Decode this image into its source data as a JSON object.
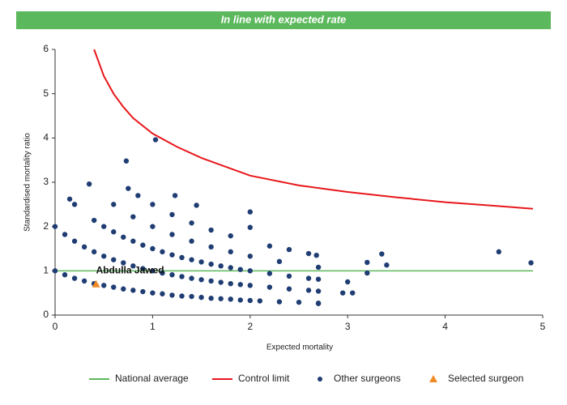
{
  "header": "In line with expected rate",
  "chart_data": {
    "type": "scatter",
    "xlabel": "Expected mortality",
    "ylabel": "Standardised mortality ratio",
    "xlim": [
      0,
      5
    ],
    "xticks": [
      0,
      1,
      2,
      3,
      4,
      5
    ],
    "ylim": [
      0,
      6
    ],
    "yticks": [
      0,
      1,
      2,
      3,
      4,
      5,
      6
    ],
    "grid": false,
    "legend": "bottom",
    "annotation": {
      "text": "Abdulla Jawed",
      "x": 0.42,
      "y": 1.0
    },
    "series": [
      {
        "name": "National average",
        "type": "line",
        "color": "#5cb85c",
        "x": [
          0,
          4.9
        ],
        "values": [
          1,
          1
        ]
      },
      {
        "name": "Control limit",
        "type": "line",
        "color": "#e8171b",
        "x": [
          0.4,
          0.5,
          0.6,
          0.7,
          0.8,
          1.0,
          1.25,
          1.5,
          2.0,
          2.5,
          3.0,
          3.5,
          4.0,
          4.5,
          4.9
        ],
        "values": [
          6.0,
          5.4,
          5.0,
          4.7,
          4.45,
          4.1,
          3.8,
          3.55,
          3.15,
          2.93,
          2.78,
          2.66,
          2.55,
          2.47,
          2.4
        ]
      },
      {
        "name": "Other surgeons",
        "type": "scatter",
        "color": "#1f3d73",
        "x": [
          0,
          0.1,
          0.2,
          0.3,
          0.4,
          0.5,
          0.6,
          0.7,
          0.8,
          0.9,
          1.0,
          1.1,
          1.2,
          1.3,
          1.4,
          1.5,
          1.6,
          1.7,
          1.8,
          1.9,
          2.0,
          2.1,
          2.3,
          2.5,
          2.7,
          0,
          0.1,
          0.2,
          0.3,
          0.4,
          0.5,
          0.6,
          0.7,
          0.8,
          0.9,
          1.0,
          1.1,
          1.2,
          1.3,
          1.4,
          1.5,
          1.6,
          1.7,
          1.8,
          1.9,
          2.0,
          2.2,
          2.4,
          2.6,
          2.7,
          2.95,
          3.05,
          0.4,
          0.5,
          0.6,
          0.7,
          0.8,
          0.9,
          1.0,
          1.1,
          1.2,
          1.3,
          1.4,
          1.5,
          1.6,
          1.7,
          1.8,
          1.9,
          2.0,
          2.2,
          2.4,
          2.6,
          2.7,
          3.0,
          0.35,
          0.6,
          0.8,
          1.0,
          1.2,
          1.4,
          1.6,
          1.8,
          2.0,
          2.3,
          2.7,
          3.2,
          0.75,
          0.85,
          1.0,
          1.2,
          1.4,
          1.6,
          1.8,
          2.2,
          2.6,
          3.2,
          0.73,
          1.03,
          1.23,
          2.0,
          1.45,
          3.35,
          4.55,
          4.88,
          2.68,
          3.4,
          0.15,
          0.2,
          2.7,
          2.0,
          2.4
        ],
        "values": [
          1,
          0.91,
          0.83,
          0.77,
          0.71,
          0.67,
          0.63,
          0.59,
          0.56,
          0.53,
          0.5,
          0.48,
          0.45,
          0.43,
          0.42,
          0.4,
          0.38,
          0.37,
          0.36,
          0.34,
          0.33,
          0.32,
          0.3,
          0.29,
          0.27,
          2,
          1.82,
          1.67,
          1.54,
          1.43,
          1.33,
          1.25,
          1.18,
          1.11,
          1.05,
          1,
          0.95,
          0.91,
          0.87,
          0.83,
          0.8,
          0.77,
          0.74,
          0.71,
          0.69,
          0.67,
          0.63,
          0.59,
          0.56,
          0.54,
          0.5,
          0.5,
          2.14,
          2.0,
          1.88,
          1.76,
          1.67,
          1.58,
          1.5,
          1.43,
          1.36,
          1.3,
          1.25,
          1.2,
          1.15,
          1.11,
          1.07,
          1.03,
          1.0,
          0.94,
          0.88,
          0.83,
          0.81,
          0.75,
          2.96,
          2.5,
          2.22,
          2.0,
          1.82,
          1.67,
          1.54,
          1.43,
          1.33,
          1.21,
          1.08,
          0.95,
          2.86,
          2.7,
          2.5,
          2.27,
          2.08,
          1.92,
          1.79,
          1.56,
          1.39,
          1.19,
          3.48,
          3.96,
          2.7,
          2.33,
          2.48,
          1.38,
          1.43,
          1.18,
          1.35,
          1.13,
          2.62,
          2.5,
          0.26,
          1.98,
          1.48
        ]
      },
      {
        "name": "Selected surgeon",
        "type": "triangle",
        "color": "#f08a24",
        "x": [
          0.42
        ],
        "values": [
          0.7
        ]
      }
    ]
  }
}
